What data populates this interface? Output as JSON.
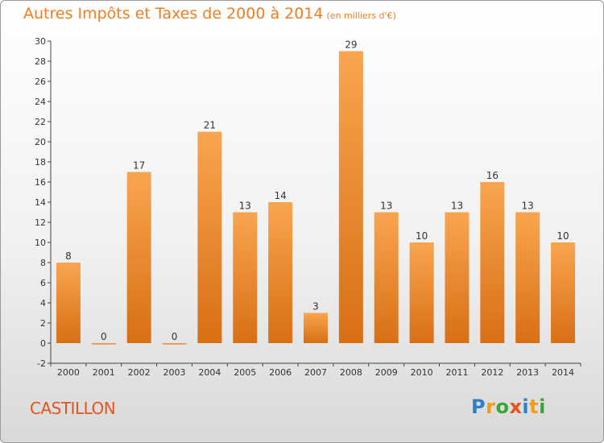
{
  "header": {
    "title": "Autres Impôts et Taxes de 2000 à 2014",
    "unit": "(en milliers d'€)"
  },
  "footer": {
    "city": "CASTILLON",
    "logo": {
      "letters": [
        "P",
        "r",
        "o",
        "x",
        "i",
        "t",
        "i"
      ],
      "colors": [
        "#2e7fc9",
        "#f39c12",
        "#3aa535",
        "#e4551a",
        "#2e7fc9",
        "#f39c12",
        "#3aa535"
      ]
    }
  },
  "colors": {
    "bar_light": "#f9a54f",
    "bar_dark": "#d86f15",
    "axis": "#444444",
    "grid_tick": "#444444"
  },
  "chart_data": {
    "type": "bar",
    "title": "Autres Impôts et Taxes de 2000 à 2014",
    "subtitle": "(en milliers d'€)",
    "xlabel": "",
    "ylabel": "",
    "categories": [
      "2000",
      "2001",
      "2002",
      "2003",
      "2004",
      "2005",
      "2006",
      "2007",
      "2008",
      "2009",
      "2010",
      "2011",
      "2012",
      "2013",
      "2014"
    ],
    "values": [
      8,
      0,
      17,
      0,
      21,
      13,
      14,
      3,
      29,
      13,
      10,
      13,
      16,
      13,
      10
    ],
    "ylim": [
      -2,
      30
    ],
    "yticks": [
      -2,
      0,
      2,
      4,
      6,
      8,
      10,
      12,
      14,
      16,
      18,
      20,
      22,
      24,
      26,
      28,
      30
    ],
    "grid": false,
    "legend": "none"
  }
}
